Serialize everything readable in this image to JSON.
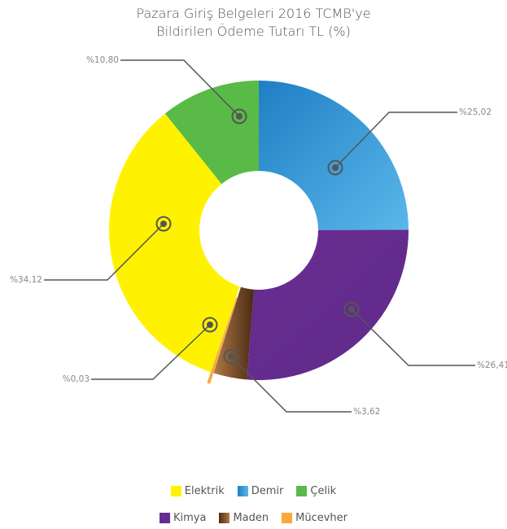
{
  "chart_data": {
    "type": "donut",
    "title_lines": [
      "Pazara Giriş Belgeleri 2016 TCMB'ye",
      "Bildirilen Ödeme Tutarı TL (%)"
    ],
    "series": [
      {
        "name": "Demir",
        "value": 25.02,
        "label": "%25,02",
        "color": "#3c9bd9"
      },
      {
        "name": "Kimya",
        "value": 26.41,
        "label": "%26,41",
        "color": "#662d91"
      },
      {
        "name": "Maden",
        "value": 3.62,
        "label": "%3,62",
        "color": "#7a5230"
      },
      {
        "name": "Mücevher",
        "value": 0.03,
        "label": "%0,03",
        "color": "#f9a93a"
      },
      {
        "name": "Elektrik",
        "value": 34.12,
        "label": "%34,12",
        "color": "#fff200"
      },
      {
        "name": "Çelik",
        "value": 10.8,
        "label": "%10,80",
        "color": "#5aba47"
      }
    ]
  },
  "legend": {
    "row1": [
      {
        "name": "Elektrik",
        "color": "#fff200"
      },
      {
        "name": "Demir",
        "color": "#3c9bd9"
      },
      {
        "name": "Çelik",
        "color": "#5aba47"
      }
    ],
    "row2": [
      {
        "name": "Kimya",
        "color": "#662d91"
      },
      {
        "name": "Maden",
        "color": "#7a5230"
      },
      {
        "name": "Mücevher",
        "color": "#f9a93a"
      }
    ]
  }
}
